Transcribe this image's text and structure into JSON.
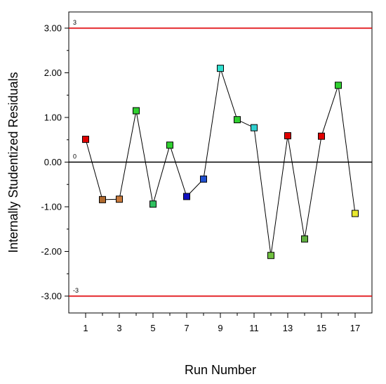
{
  "chart_data": {
    "type": "scatter",
    "title": "",
    "xlabel": "Run Number",
    "ylabel": "Internally Studentized Residuals",
    "xlim": [
      0,
      18
    ],
    "ylim": [
      -3.4,
      3.4
    ],
    "x_ticks": [
      1,
      3,
      5,
      7,
      9,
      11,
      13,
      15,
      17
    ],
    "x_minor_ticks": [
      2,
      4,
      6,
      8,
      10,
      12,
      14,
      16
    ],
    "y_ticks": [
      3,
      2,
      1,
      0,
      -1,
      -2,
      -3
    ],
    "y_tick_labels": [
      "3.00",
      "2.00",
      "1.00",
      "0.00",
      "-1.00",
      "-2.00",
      "-3.00"
    ],
    "grid": false,
    "connect_points": true,
    "reference_lines": [
      {
        "value": 3,
        "label": "3",
        "color": "#dd0000"
      },
      {
        "value": 0,
        "label": "0",
        "color": "#000000"
      },
      {
        "value": -3,
        "label": "-3",
        "color": "#dd0000"
      }
    ],
    "series": [
      {
        "x": [
          1,
          2,
          3,
          4,
          5,
          6,
          7,
          8,
          9,
          10,
          11,
          12,
          13,
          14,
          15,
          16,
          17
        ],
        "y": [
          0.51,
          -0.84,
          -0.83,
          1.15,
          -0.94,
          0.38,
          -0.77,
          -0.38,
          2.1,
          0.95,
          0.77,
          -2.09,
          0.59,
          -1.72,
          0.58,
          1.72,
          -1.15
        ],
        "colors": [
          "#e00000",
          "#b06a2e",
          "#c87a3c",
          "#30d030",
          "#30c060",
          "#30d030",
          "#1010c0",
          "#2050d0",
          "#30e0d0",
          "#30d030",
          "#30d0d0",
          "#70c040",
          "#e00000",
          "#60b040",
          "#e00000",
          "#30d030",
          "#e8e830"
        ]
      }
    ]
  }
}
